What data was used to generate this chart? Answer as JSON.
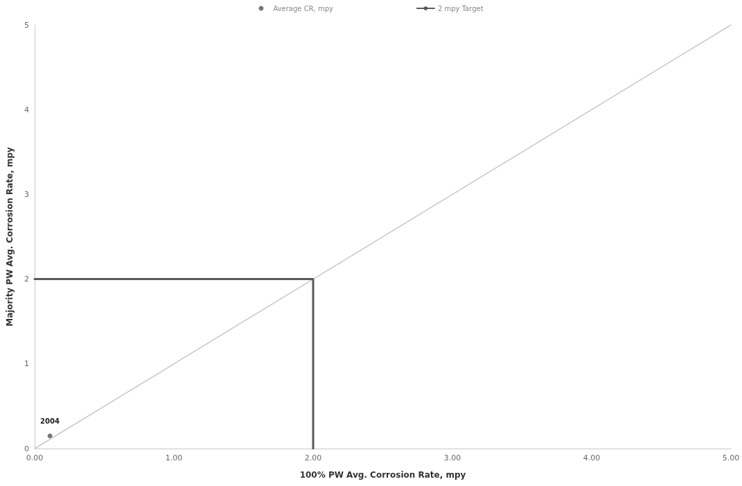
{
  "chart_data": {
    "type": "scatter",
    "xlabel": "100% PW Avg. Corrosion Rate, mpy",
    "ylabel": "Majority PW Avg. Corrosion Rate, mpy",
    "series": [
      {
        "type": "line",
        "color": "#c8c8c8",
        "x": [
          0,
          5
        ],
        "values": [
          0,
          5
        ]
      },
      {
        "name": "Average CR, mpy",
        "color": "#555555",
        "x": [
          0.11
        ],
        "values": [
          0.15
        ],
        "marker": "circle"
      },
      {
        "type": "line",
        "name": "2 mpy Target",
        "color": "#5a5a5a",
        "x": [
          0,
          2,
          2
        ],
        "values": [
          2,
          2,
          0
        ]
      }
    ],
    "xlim": [
      0,
      5
    ],
    "xticks": [
      {
        "value": 0,
        "label": "0.00"
      },
      {
        "value": 1,
        "label": "1.00"
      },
      {
        "value": 2,
        "label": "2.00"
      },
      {
        "value": 3,
        "label": "3.00"
      },
      {
        "value": 4,
        "label": "4.00"
      },
      {
        "value": 5,
        "label": "5.00"
      }
    ],
    "ylim": [
      0,
      5
    ],
    "yticks": [
      0,
      1,
      2,
      3,
      4,
      5
    ],
    "annotations": [
      {
        "text": "2004",
        "x": 0.11,
        "y": 0.15
      }
    ],
    "marker": "none",
    "legend": "top",
    "grid": false,
    "line_style": "solid"
  }
}
